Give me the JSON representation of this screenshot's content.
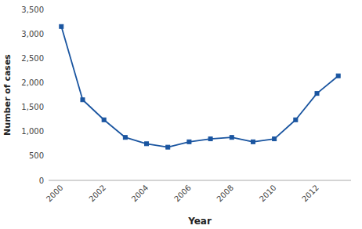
{
  "chart_data": {
    "type": "line",
    "xlabel": "Year",
    "ylabel": "Number of cases",
    "x": [
      2000,
      2001,
      2002,
      2003,
      2004,
      2005,
      2006,
      2007,
      2008,
      2009,
      2010,
      2011,
      2012,
      2013
    ],
    "values": [
      3150,
      1650,
      1240,
      880,
      750,
      680,
      790,
      850,
      880,
      790,
      850,
      1240,
      1780,
      2140
    ],
    "color": "#1a55a0",
    "marker": "square",
    "xlim": [
      1999.4,
      2013.6
    ],
    "ylim": [
      0,
      3500
    ],
    "xticks": [
      2000,
      2002,
      2004,
      2006,
      2008,
      2010,
      2012
    ],
    "yticks": [
      0,
      500,
      {
        "value": 1000,
        "label": "1,000"
      },
      {
        "value": 1500,
        "label": "1,500"
      },
      {
        "value": 2000,
        "label": "2,000"
      },
      {
        "value": 2500,
        "label": "2,500"
      },
      {
        "value": 3000,
        "label": "3,000"
      },
      {
        "value": 3500,
        "label": "3,500"
      }
    ],
    "grid": false
  }
}
